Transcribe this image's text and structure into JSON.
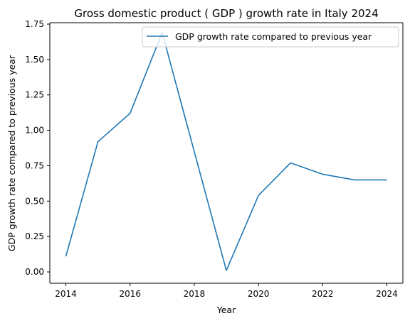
{
  "chart_data": {
    "type": "line",
    "title": "Gross domestic product ( GDP ) growth rate in Italy 2024",
    "xlabel": "Year",
    "ylabel": "GDP growth rate compared to previous year",
    "xlim": [
      2013.5,
      2024.5
    ],
    "ylim": [
      -0.08,
      1.76
    ],
    "xticks": [
      2014,
      2016,
      2018,
      2020,
      2022,
      2024
    ],
    "yticks": [
      0.0,
      0.25,
      0.5,
      0.75,
      1.0,
      1.25,
      1.5,
      1.75
    ],
    "ytick_labels": [
      "0.00",
      "0.25",
      "0.50",
      "0.75",
      "1.00",
      "1.25",
      "1.50",
      "1.75"
    ],
    "grid": false,
    "legend_position": "top-right",
    "series": [
      {
        "name": "GDP growth rate compared to previous year",
        "color": "#1f77b4",
        "x": [
          2014,
          2015,
          2016,
          2017,
          2018,
          2019,
          2020,
          2021,
          2022,
          2023,
          2024
        ],
        "values": [
          0.11,
          0.92,
          1.12,
          1.69,
          0.85,
          0.01,
          0.54,
          0.77,
          0.69,
          0.65,
          0.65
        ]
      }
    ]
  }
}
